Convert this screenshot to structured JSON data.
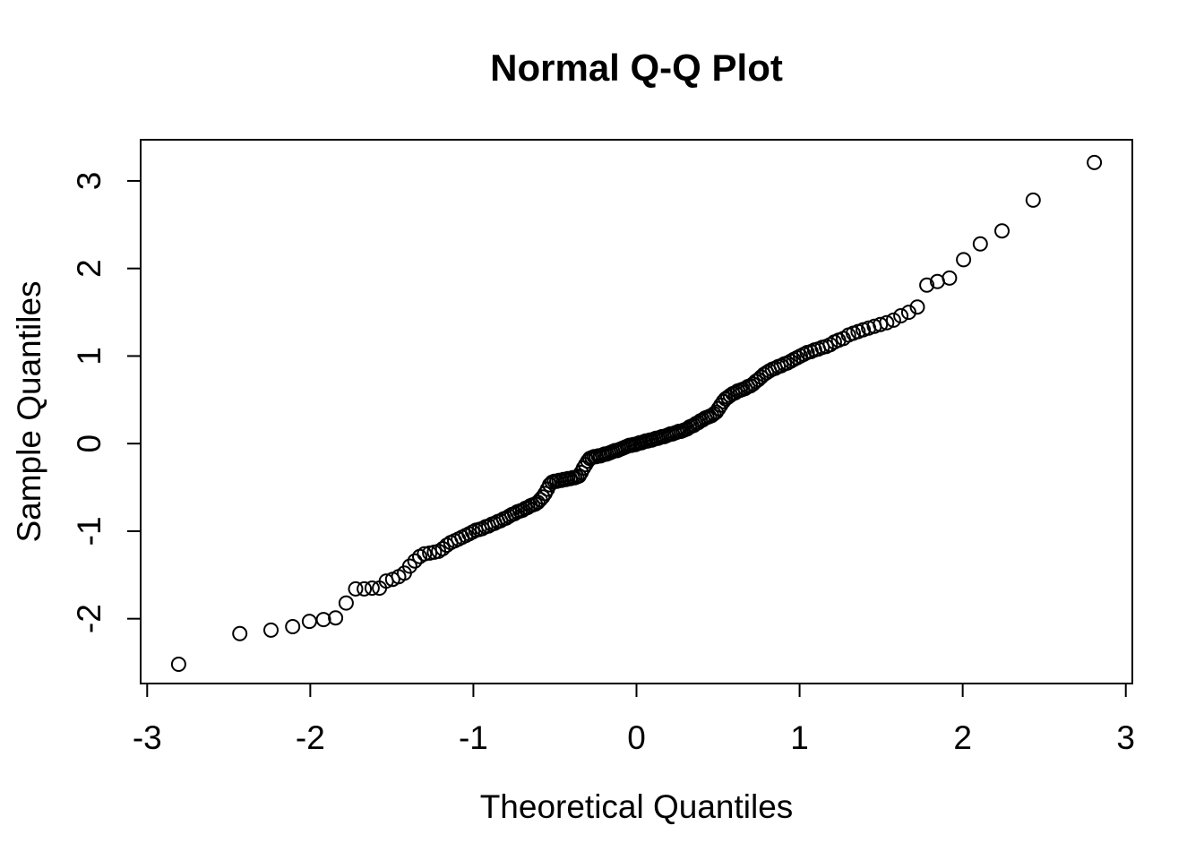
{
  "window": {
    "background": "#ffffff",
    "foreground": "#000000"
  },
  "chart_data": {
    "type": "scatter",
    "title": "Normal Q-Q Plot",
    "xlabel": "Theoretical Quantiles",
    "ylabel": "Sample Quantiles",
    "x_ticks": [
      -3,
      -2,
      -1,
      0,
      1,
      2,
      3
    ],
    "y_ticks": [
      -2,
      -1,
      0,
      1,
      2,
      3
    ],
    "xlim": [
      -3.04,
      3.04
    ],
    "ylim": [
      -2.74,
      3.47
    ],
    "grid": false,
    "legend": null,
    "marker": {
      "shape": "open-circle",
      "color": "#000000",
      "radius_px": 7.5,
      "stroke_px": 2
    },
    "n_points": 200,
    "points": [
      [
        -2.807,
        -2.52
      ],
      [
        -2.432,
        -2.17
      ],
      [
        -2.241,
        -2.13
      ],
      [
        -2.108,
        -2.09
      ],
      [
        -2.005,
        -2.03
      ],
      [
        -1.919,
        -2.01
      ],
      [
        -1.845,
        -1.99
      ],
      [
        -1.78,
        -1.82
      ],
      [
        -1.722,
        -1.66
      ],
      [
        -1.669,
        -1.66
      ],
      [
        -1.621,
        -1.65
      ],
      [
        -1.576,
        -1.65
      ],
      [
        -1.534,
        -1.57
      ],
      [
        -1.495,
        -1.55
      ],
      [
        -1.458,
        -1.52
      ],
      [
        -1.423,
        -1.48
      ],
      [
        -1.39,
        -1.4
      ],
      [
        -1.359,
        -1.34
      ],
      [
        -1.329,
        -1.29
      ],
      [
        -1.3,
        -1.26
      ],
      [
        -1.268,
        -1.25
      ],
      [
        -1.239,
        -1.24
      ],
      [
        -1.213,
        -1.23
      ],
      [
        -1.188,
        -1.2
      ],
      [
        -1.163,
        -1.16
      ],
      [
        -1.139,
        -1.13
      ],
      [
        -1.115,
        -1.11
      ],
      [
        -1.092,
        -1.09
      ],
      [
        -1.07,
        -1.07
      ],
      [
        -1.047,
        -1.05
      ],
      [
        -1.026,
        -1.03
      ],
      [
        -1.005,
        -1.01
      ],
      [
        -0.985,
        -0.99
      ],
      [
        -0.964,
        -0.98
      ],
      [
        -0.945,
        -0.97
      ],
      [
        -0.925,
        -0.95
      ],
      [
        -0.906,
        -0.94
      ],
      [
        -0.887,
        -0.92
      ],
      [
        -0.869,
        -0.91
      ],
      [
        -0.851,
        -0.89
      ],
      [
        -0.833,
        -0.88
      ],
      [
        -0.815,
        -0.86
      ],
      [
        -0.798,
        -0.85
      ],
      [
        -0.781,
        -0.83
      ],
      [
        -0.764,
        -0.81
      ],
      [
        -0.747,
        -0.8
      ],
      [
        -0.731,
        -0.78
      ],
      [
        -0.714,
        -0.77
      ],
      [
        -0.698,
        -0.76
      ],
      [
        -0.682,
        -0.74
      ],
      [
        -0.667,
        -0.73
      ],
      [
        -0.651,
        -0.71
      ],
      [
        -0.636,
        -0.7
      ],
      [
        -0.62,
        -0.69
      ],
      [
        -0.605,
        -0.67
      ],
      [
        -0.59,
        -0.64
      ],
      [
        -0.575,
        -0.61
      ],
      [
        -0.561,
        -0.57
      ],
      [
        -0.546,
        -0.52
      ],
      [
        -0.532,
        -0.47
      ],
      [
        -0.517,
        -0.44
      ],
      [
        -0.503,
        -0.43
      ],
      [
        -0.489,
        -0.43
      ],
      [
        -0.475,
        -0.42
      ],
      [
        -0.461,
        -0.42
      ],
      [
        -0.447,
        -0.41
      ],
      [
        -0.433,
        -0.41
      ],
      [
        -0.42,
        -0.4
      ],
      [
        -0.406,
        -0.4
      ],
      [
        -0.392,
        -0.39
      ],
      [
        -0.379,
        -0.39
      ],
      [
        -0.365,
        -0.38
      ],
      [
        -0.352,
        -0.37
      ],
      [
        -0.339,
        -0.33
      ],
      [
        -0.325,
        -0.28
      ],
      [
        -0.312,
        -0.24
      ],
      [
        -0.299,
        -0.2
      ],
      [
        -0.286,
        -0.17
      ],
      [
        -0.273,
        -0.16
      ],
      [
        -0.26,
        -0.15
      ],
      [
        -0.247,
        -0.15
      ],
      [
        -0.234,
        -0.14
      ],
      [
        -0.221,
        -0.14
      ],
      [
        -0.208,
        -0.13
      ],
      [
        -0.196,
        -0.12
      ],
      [
        -0.183,
        -0.12
      ],
      [
        -0.17,
        -0.11
      ],
      [
        -0.157,
        -0.1
      ],
      [
        -0.145,
        -0.09
      ],
      [
        -0.132,
        -0.08
      ],
      [
        -0.119,
        -0.08
      ],
      [
        -0.107,
        -0.07
      ],
      [
        -0.094,
        -0.06
      ],
      [
        -0.082,
        -0.05
      ],
      [
        -0.069,
        -0.04
      ],
      [
        -0.056,
        -0.03
      ],
      [
        -0.044,
        -0.02
      ],
      [
        -0.031,
        -0.02
      ],
      [
        -0.019,
        -0.01
      ],
      [
        -0.006,
        -0.01
      ],
      [
        0.006,
        0.0
      ],
      [
        0.019,
        0.01
      ],
      [
        0.031,
        0.01
      ],
      [
        0.044,
        0.02
      ],
      [
        0.056,
        0.03
      ],
      [
        0.069,
        0.03
      ],
      [
        0.082,
        0.04
      ],
      [
        0.094,
        0.04
      ],
      [
        0.107,
        0.05
      ],
      [
        0.119,
        0.06
      ],
      [
        0.132,
        0.06
      ],
      [
        0.145,
        0.07
      ],
      [
        0.157,
        0.08
      ],
      [
        0.17,
        0.08
      ],
      [
        0.183,
        0.09
      ],
      [
        0.196,
        0.1
      ],
      [
        0.208,
        0.11
      ],
      [
        0.221,
        0.11
      ],
      [
        0.234,
        0.12
      ],
      [
        0.247,
        0.13
      ],
      [
        0.26,
        0.14
      ],
      [
        0.273,
        0.14
      ],
      [
        0.286,
        0.15
      ],
      [
        0.299,
        0.16
      ],
      [
        0.312,
        0.17
      ],
      [
        0.325,
        0.19
      ],
      [
        0.339,
        0.2
      ],
      [
        0.352,
        0.21
      ],
      [
        0.365,
        0.23
      ],
      [
        0.379,
        0.24
      ],
      [
        0.392,
        0.26
      ],
      [
        0.406,
        0.27
      ],
      [
        0.42,
        0.29
      ],
      [
        0.433,
        0.3
      ],
      [
        0.447,
        0.31
      ],
      [
        0.461,
        0.32
      ],
      [
        0.475,
        0.34
      ],
      [
        0.489,
        0.36
      ],
      [
        0.503,
        0.4
      ],
      [
        0.517,
        0.44
      ],
      [
        0.532,
        0.48
      ],
      [
        0.546,
        0.51
      ],
      [
        0.561,
        0.53
      ],
      [
        0.575,
        0.55
      ],
      [
        0.59,
        0.57
      ],
      [
        0.605,
        0.58
      ],
      [
        0.62,
        0.6
      ],
      [
        0.636,
        0.61
      ],
      [
        0.651,
        0.62
      ],
      [
        0.667,
        0.63
      ],
      [
        0.682,
        0.65
      ],
      [
        0.698,
        0.66
      ],
      [
        0.714,
        0.68
      ],
      [
        0.731,
        0.71
      ],
      [
        0.747,
        0.73
      ],
      [
        0.764,
        0.76
      ],
      [
        0.781,
        0.79
      ],
      [
        0.798,
        0.81
      ],
      [
        0.815,
        0.83
      ],
      [
        0.833,
        0.85
      ],
      [
        0.851,
        0.86
      ],
      [
        0.869,
        0.88
      ],
      [
        0.887,
        0.89
      ],
      [
        0.906,
        0.91
      ],
      [
        0.925,
        0.92
      ],
      [
        0.945,
        0.94
      ],
      [
        0.964,
        0.96
      ],
      [
        0.985,
        0.98
      ],
      [
        1.005,
        1.0
      ],
      [
        1.026,
        1.02
      ],
      [
        1.047,
        1.04
      ],
      [
        1.07,
        1.05
      ],
      [
        1.092,
        1.07
      ],
      [
        1.115,
        1.08
      ],
      [
        1.139,
        1.1
      ],
      [
        1.163,
        1.11
      ],
      [
        1.188,
        1.13
      ],
      [
        1.213,
        1.16
      ],
      [
        1.239,
        1.18
      ],
      [
        1.268,
        1.2
      ],
      [
        1.3,
        1.24
      ],
      [
        1.329,
        1.26
      ],
      [
        1.359,
        1.28
      ],
      [
        1.39,
        1.3
      ],
      [
        1.423,
        1.32
      ],
      [
        1.458,
        1.34
      ],
      [
        1.495,
        1.36
      ],
      [
        1.534,
        1.38
      ],
      [
        1.576,
        1.41
      ],
      [
        1.621,
        1.46
      ],
      [
        1.669,
        1.5
      ],
      [
        1.722,
        1.56
      ],
      [
        1.78,
        1.81
      ],
      [
        1.845,
        1.85
      ],
      [
        1.919,
        1.89
      ],
      [
        2.005,
        2.1
      ],
      [
        2.108,
        2.28
      ],
      [
        2.241,
        2.43
      ],
      [
        2.432,
        2.78
      ],
      [
        2.807,
        3.21
      ]
    ]
  }
}
